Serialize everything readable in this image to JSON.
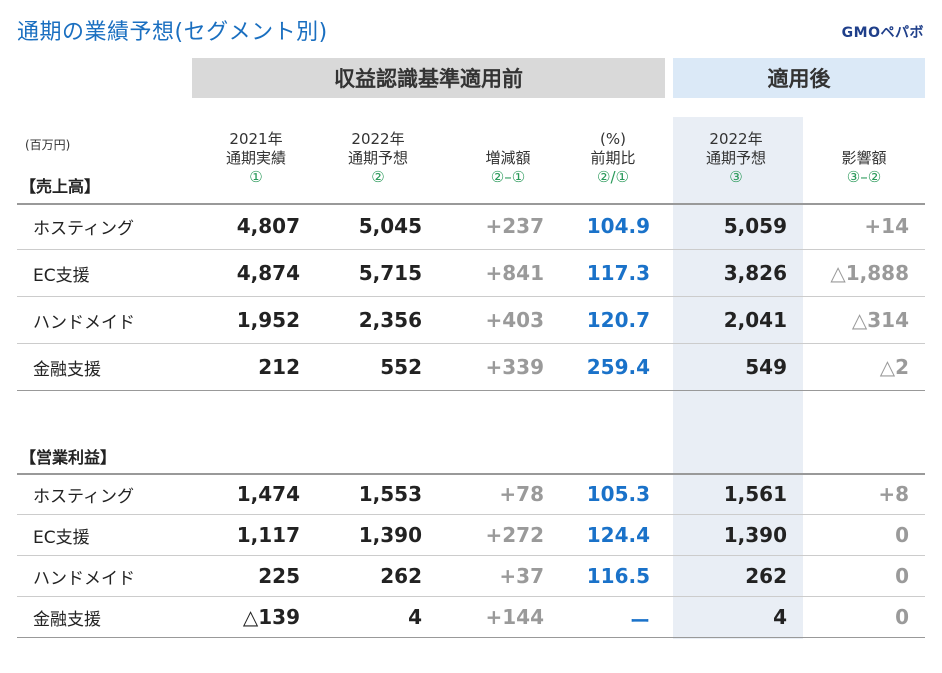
{
  "title": "通期の業績予想(セグメント別)",
  "logo_text": "GMOペパボ",
  "bands": {
    "before": "収益認識基準適用前",
    "after": "適用後"
  },
  "unit": "(百万円)",
  "columns": [
    {
      "line1": "2021年",
      "line2": "通期実績",
      "marker": "①"
    },
    {
      "line1": "2022年",
      "line2": "通期予想",
      "marker": "②"
    },
    {
      "line1": "",
      "line2": "増減額",
      "marker": "②–①"
    },
    {
      "line1": "(%)",
      "line2": "前期比",
      "marker": "②/①"
    },
    {
      "line1": "2022年",
      "line2": "通期予想",
      "marker": "③"
    },
    {
      "line1": "",
      "line2": "影響額",
      "marker": "③–②"
    }
  ],
  "sections": [
    {
      "title": "【売上高】",
      "rows": [
        {
          "label": "ホスティング",
          "values": [
            "4,807",
            "5,045",
            "+237",
            "104.9",
            "5,059",
            "+14"
          ]
        },
        {
          "label": "EC支援",
          "values": [
            "4,874",
            "5,715",
            "+841",
            "117.3",
            "3,826",
            "△1,888"
          ]
        },
        {
          "label": "ハンドメイド",
          "values": [
            "1,952",
            "2,356",
            "+403",
            "120.7",
            "2,041",
            "△314"
          ]
        },
        {
          "label": "金融支援",
          "values": [
            "212",
            "552",
            "+339",
            "259.4",
            "549",
            "△2"
          ]
        }
      ]
    },
    {
      "title": "【営業利益】",
      "rows": [
        {
          "label": "ホスティング",
          "values": [
            "1,474",
            "1,553",
            "+78",
            "105.3",
            "1,561",
            "+8"
          ]
        },
        {
          "label": "EC支援",
          "values": [
            "1,117",
            "1,390",
            "+272",
            "124.4",
            "1,390",
            "0"
          ]
        },
        {
          "label": "ハンドメイド",
          "values": [
            "225",
            "262",
            "+37",
            "116.5",
            "262",
            "0"
          ]
        },
        {
          "label": "金融支援",
          "values": [
            "△139",
            "4",
            "+144",
            "ー",
            "4",
            "0"
          ]
        }
      ]
    }
  ]
}
